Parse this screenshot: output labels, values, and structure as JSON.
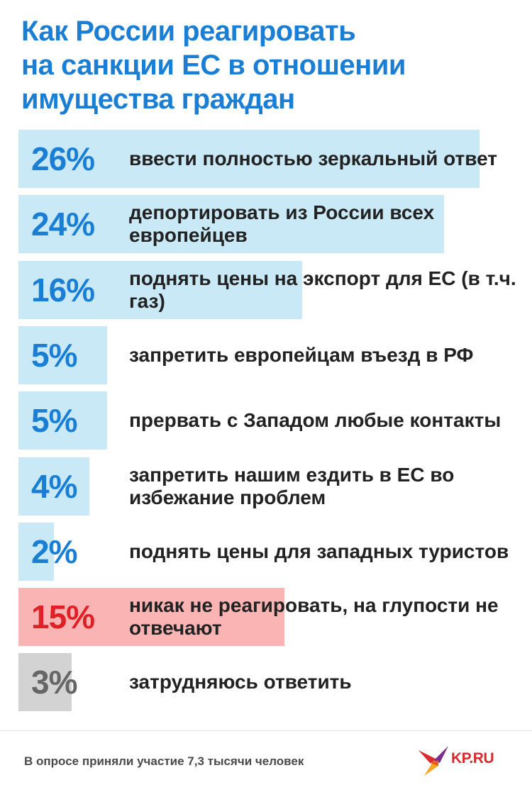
{
  "title_lines": [
    "Как России реагировать",
    "на санкции ЕС в отношении",
    "имущества граждан"
  ],
  "chart_data": {
    "type": "bar",
    "orientation": "horizontal",
    "scale_max": 30,
    "items": [
      {
        "value": 26,
        "value_label": "26%",
        "label": "ввести полностью зеркальный ответ",
        "color": "#c9e9f7",
        "text_color": "#1a7fd4"
      },
      {
        "value": 24,
        "value_label": "24%",
        "label": "депортировать из России всех европейцев",
        "color": "#c9e9f7",
        "text_color": "#1a7fd4"
      },
      {
        "value": 16,
        "value_label": "16%",
        "label": "поднять цены на экспорт для ЕС (в т.ч. газ)",
        "color": "#c9e9f7",
        "text_color": "#1a7fd4"
      },
      {
        "value": 5,
        "value_label": "5%",
        "label": "запретить европейцам въезд в РФ",
        "color": "#c9e9f7",
        "text_color": "#1a7fd4"
      },
      {
        "value": 5,
        "value_label": "5%",
        "label": "прервать с Западом любые контакты",
        "color": "#c9e9f7",
        "text_color": "#1a7fd4"
      },
      {
        "value": 4,
        "value_label": "4%",
        "label": "запретить нашим ездить в ЕС во избежание проблем",
        "color": "#c9e9f7",
        "text_color": "#1a7fd4"
      },
      {
        "value": 2,
        "value_label": "2%",
        "label": "поднять цены для западных туристов",
        "color": "#c9e9f7",
        "text_color": "#1a7fd4"
      },
      {
        "value": 15,
        "value_label": "15%",
        "label": "никак не реагировать, на глупости не отвечают",
        "color": "#fbb4b4",
        "text_color": "#e01f26"
      },
      {
        "value": 3,
        "value_label": "3%",
        "label": "затрудняюсь ответить",
        "color": "#d3d3d3",
        "text_color": "#666666"
      }
    ]
  },
  "footnote": "В опросе приняли участие 7,3 тысячи человек",
  "logo": {
    "text": "KP.RU",
    "icon": "kp-bird-icon",
    "colors": [
      "#d92b2b",
      "#f5a623",
      "#7b2d8e"
    ]
  }
}
